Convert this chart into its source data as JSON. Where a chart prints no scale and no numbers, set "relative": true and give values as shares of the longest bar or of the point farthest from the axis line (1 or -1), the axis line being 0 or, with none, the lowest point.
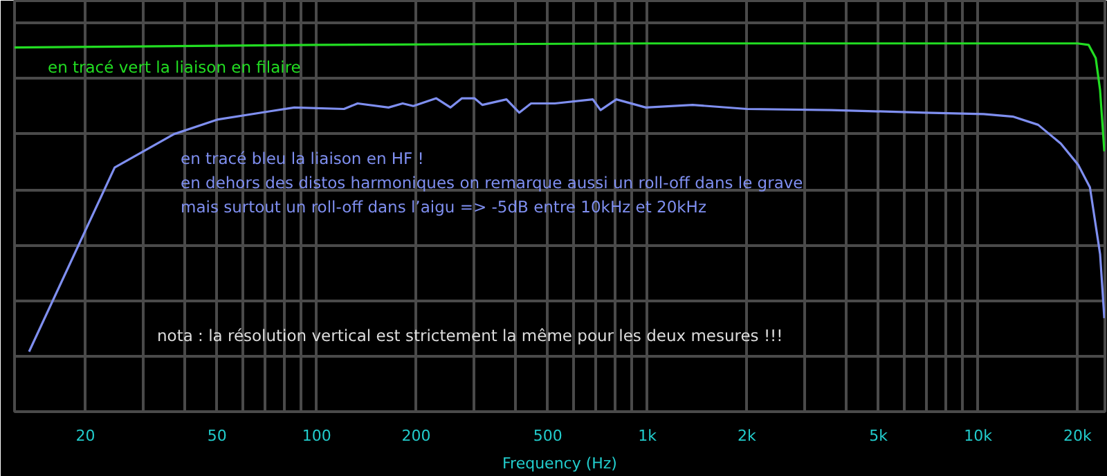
{
  "chart_data": {
    "type": "line",
    "relative": true,
    "xlabel": "Frequency (Hz)",
    "log": "x",
    "grid": true,
    "marker": "none",
    "line_style": "solid",
    "xlim": [
      12.2,
      24200
    ],
    "xticks": [
      20,
      {
        "value": 30,
        "label": null
      },
      {
        "value": 40,
        "label": null
      },
      50,
      {
        "value": 60,
        "label": null
      },
      {
        "value": 70,
        "label": null
      },
      {
        "value": 80,
        "label": null
      },
      {
        "value": 90,
        "label": null
      },
      100,
      200,
      {
        "value": 300,
        "label": null
      },
      {
        "value": 400,
        "label": null
      },
      500,
      {
        "value": 600,
        "label": null
      },
      {
        "value": 700,
        "label": null
      },
      {
        "value": 800,
        "label": null
      },
      {
        "value": 900,
        "label": null
      },
      {
        "value": 1000,
        "label": "1k"
      },
      {
        "value": 2000,
        "label": "2k"
      },
      {
        "value": 3000,
        "label": null
      },
      {
        "value": 4000,
        "label": null
      },
      {
        "value": 5000,
        "label": "5k"
      },
      {
        "value": 6000,
        "label": null
      },
      {
        "value": 7000,
        "label": null
      },
      {
        "value": 8000,
        "label": null
      },
      {
        "value": 9000,
        "label": null
      },
      {
        "value": 10000,
        "label": "10k"
      },
      {
        "value": 20000,
        "label": "20k"
      }
    ],
    "series": [
      {
        "color": "#22dd22",
        "x": [
          12.2,
          100,
          1000,
          10000,
          20000,
          21600,
          22700,
          23400,
          24100
        ],
        "values": [
          0.989,
          0.996,
          1.0,
          1.0,
          1.0,
          0.996,
          0.96,
          0.873,
          0.707
        ]
      },
      {
        "color": "#7f8ff0",
        "x": [
          13.5,
          24.5,
          37.1,
          50,
          71.3,
          85.6,
          121,
          133,
          165,
          182,
          196,
          230,
          254,
          275,
          300,
          317,
          375,
          410,
          445,
          525,
          684,
          722,
          806,
          990,
          1370,
          2000,
          3600,
          6900,
          10400,
          12800,
          15200,
          17800,
          20100,
          21800,
          23400,
          24100
        ],
        "values": [
          0.163,
          0.663,
          0.754,
          0.793,
          0.815,
          0.826,
          0.822,
          0.837,
          0.826,
          0.837,
          0.83,
          0.851,
          0.826,
          0.851,
          0.851,
          0.833,
          0.848,
          0.812,
          0.837,
          0.837,
          0.848,
          0.819,
          0.848,
          0.826,
          0.833,
          0.822,
          0.819,
          0.812,
          0.808,
          0.801,
          0.779,
          0.728,
          0.67,
          0.609,
          0.428,
          0.254
        ]
      }
    ],
    "annotations": [
      "en tracé vert la liaison en filaire",
      "en tracé bleu la liaison en HF !\nen dehors des distos harmoniques on remarque aussi un roll-off dans le grave\nmais surtout un roll-off dans l’aigu => -5dB entre 10kHz et 20kHz",
      "nota : la résolution vertical est strictement la même pour les deux mesures !!!"
    ]
  }
}
